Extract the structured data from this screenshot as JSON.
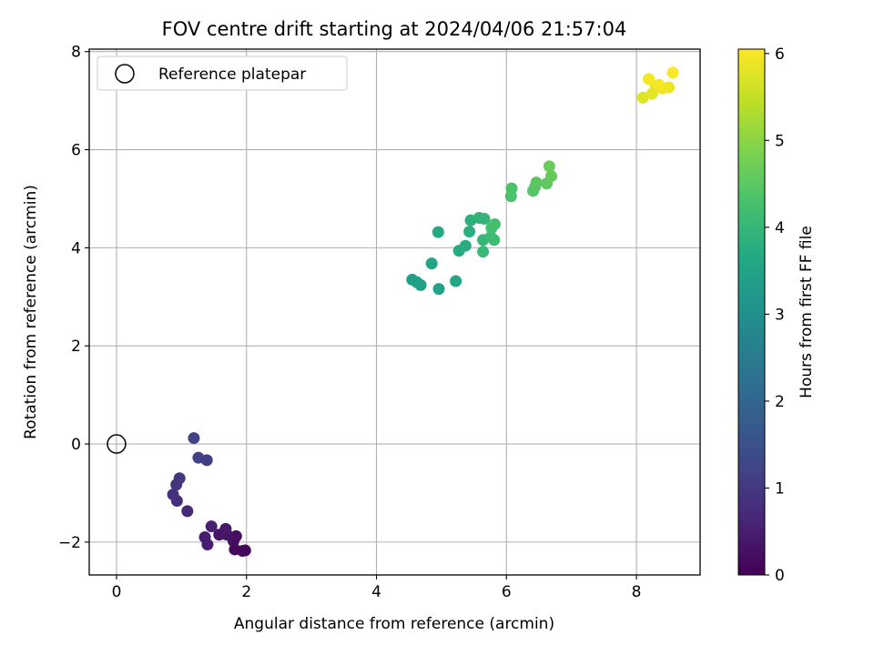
{
  "chart_data": {
    "type": "scatter",
    "title": "FOV centre drift starting at 2024/04/06 21:57:04",
    "xlabel": "Angular distance from reference (arcmin)",
    "ylabel": "Rotation from reference (arcmin)",
    "xlim": [
      -0.42,
      8.98
    ],
    "ylim": [
      -2.67,
      8.05
    ],
    "xticks": [
      0,
      2,
      4,
      6,
      8
    ],
    "yticks": [
      -2,
      0,
      2,
      4,
      6,
      8
    ],
    "grid": true,
    "legend": {
      "placement": "top-left",
      "entries": [
        "Reference platepar"
      ]
    },
    "reference_point": {
      "x": 0,
      "y": 0
    },
    "colorbar": {
      "label": "Hours from first FF file",
      "range": [
        0,
        6.05
      ],
      "ticks": [
        0,
        1,
        2,
        3,
        4,
        5,
        6
      ],
      "colormap": "viridis"
    },
    "points": [
      {
        "x": 1.94,
        "y": -2.18,
        "h": 0.05
      },
      {
        "x": 1.98,
        "y": -2.17,
        "h": 0.1
      },
      {
        "x": 1.82,
        "y": -2.15,
        "h": 0.15
      },
      {
        "x": 1.8,
        "y": -1.98,
        "h": 0.2
      },
      {
        "x": 1.84,
        "y": -1.88,
        "h": 0.25
      },
      {
        "x": 1.7,
        "y": -1.85,
        "h": 0.3
      },
      {
        "x": 1.58,
        "y": -1.85,
        "h": 0.35
      },
      {
        "x": 1.68,
        "y": -1.73,
        "h": 0.4
      },
      {
        "x": 1.4,
        "y": -2.05,
        "h": 0.45
      },
      {
        "x": 1.36,
        "y": -1.9,
        "h": 0.5
      },
      {
        "x": 1.46,
        "y": -1.68,
        "h": 0.55
      },
      {
        "x": 1.09,
        "y": -1.37,
        "h": 0.7
      },
      {
        "x": 0.93,
        "y": -1.16,
        "h": 0.8
      },
      {
        "x": 0.87,
        "y": -1.03,
        "h": 0.85
      },
      {
        "x": 0.92,
        "y": -0.83,
        "h": 0.9
      },
      {
        "x": 0.97,
        "y": -0.7,
        "h": 0.95
      },
      {
        "x": 1.39,
        "y": -0.33,
        "h": 1.1
      },
      {
        "x": 1.26,
        "y": -0.28,
        "h": 1.15
      },
      {
        "x": 1.19,
        "y": 0.12,
        "h": 1.2
      },
      {
        "x": 4.55,
        "y": 3.35,
        "h": 3.35
      },
      {
        "x": 4.62,
        "y": 3.3,
        "h": 3.4
      },
      {
        "x": 4.68,
        "y": 3.24,
        "h": 3.45
      },
      {
        "x": 4.96,
        "y": 3.16,
        "h": 3.5
      },
      {
        "x": 4.85,
        "y": 3.68,
        "h": 3.55
      },
      {
        "x": 5.22,
        "y": 3.32,
        "h": 3.6
      },
      {
        "x": 4.95,
        "y": 4.32,
        "h": 3.65
      },
      {
        "x": 5.27,
        "y": 3.94,
        "h": 3.7
      },
      {
        "x": 5.37,
        "y": 4.04,
        "h": 3.75
      },
      {
        "x": 5.43,
        "y": 4.33,
        "h": 3.8
      },
      {
        "x": 5.45,
        "y": 4.56,
        "h": 3.85
      },
      {
        "x": 5.58,
        "y": 4.61,
        "h": 3.9
      },
      {
        "x": 5.66,
        "y": 4.59,
        "h": 3.95
      },
      {
        "x": 5.64,
        "y": 4.16,
        "h": 4.0
      },
      {
        "x": 5.64,
        "y": 3.92,
        "h": 4.05
      },
      {
        "x": 5.76,
        "y": 4.22,
        "h": 4.1
      },
      {
        "x": 5.81,
        "y": 4.16,
        "h": 4.15
      },
      {
        "x": 5.77,
        "y": 4.4,
        "h": 4.2
      },
      {
        "x": 5.82,
        "y": 4.48,
        "h": 4.25
      },
      {
        "x": 6.07,
        "y": 5.05,
        "h": 4.3
      },
      {
        "x": 6.08,
        "y": 5.21,
        "h": 4.35
      },
      {
        "x": 6.41,
        "y": 5.16,
        "h": 4.4
      },
      {
        "x": 6.44,
        "y": 5.24,
        "h": 4.45
      },
      {
        "x": 6.46,
        "y": 5.33,
        "h": 4.5
      },
      {
        "x": 6.62,
        "y": 5.31,
        "h": 4.55
      },
      {
        "x": 6.69,
        "y": 5.46,
        "h": 4.6
      },
      {
        "x": 6.66,
        "y": 5.66,
        "h": 4.65
      },
      {
        "x": 8.1,
        "y": 7.06,
        "h": 5.75
      },
      {
        "x": 8.24,
        "y": 7.14,
        "h": 5.8
      },
      {
        "x": 8.3,
        "y": 7.3,
        "h": 5.85
      },
      {
        "x": 8.4,
        "y": 7.25,
        "h": 5.88
      },
      {
        "x": 8.5,
        "y": 7.27,
        "h": 5.92
      },
      {
        "x": 8.19,
        "y": 7.44,
        "h": 5.95
      },
      {
        "x": 8.35,
        "y": 7.32,
        "h": 5.98
      },
      {
        "x": 8.56,
        "y": 7.57,
        "h": 6.02
      }
    ]
  }
}
